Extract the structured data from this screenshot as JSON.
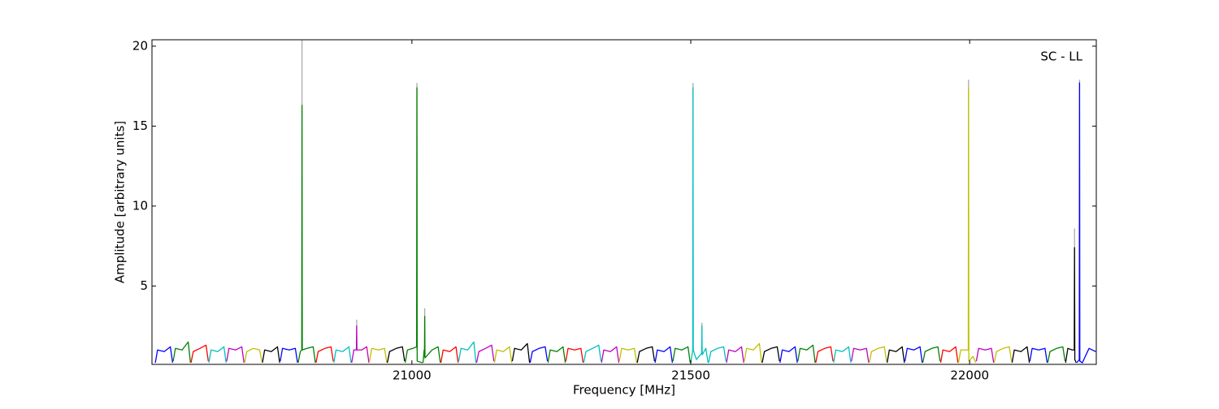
{
  "chart_data": {
    "type": "line",
    "annotation": "SC - LL",
    "x_label": "Frequency [MHz]",
    "y_label": "Amplitude [arbitrary units]",
    "xlim": [
      20534,
      22227
    ],
    "ylim": [
      0.1,
      20.4
    ],
    "xticks": [
      21000,
      21500,
      22000
    ],
    "yticks": [
      5,
      10,
      15,
      20
    ],
    "grid": false,
    "series": [
      {
        "color": "#aaaaaa",
        "x": [
          20803,
          20803,
          20803,
          20901,
          20901,
          20901,
          21009,
          21009,
          21009,
          21023,
          21023,
          21023,
          21504,
          21504,
          21504,
          21520,
          21520,
          21520,
          21998,
          21998,
          21998,
          22188,
          22188,
          22188,
          22197,
          22197,
          22197
        ],
        "values": [
          1,
          21,
          null,
          1,
          2.9,
          null,
          1,
          17.7,
          null,
          1,
          3.6,
          null,
          1,
          17.7,
          null,
          1,
          2.7,
          null,
          1,
          17.9,
          null,
          1,
          8.6,
          null,
          1,
          17.9,
          null
        ]
      },
      {
        "color": "#0000ff",
        "x": [
          20540,
          20544,
          20556,
          20567,
          20571
        ],
        "values": [
          0.2,
          1.0,
          0.9,
          1.2,
          0.2
        ]
      },
      {
        "color": "#008000",
        "x": [
          20572,
          20576,
          20588,
          20599,
          20603
        ],
        "values": [
          0.3,
          1.1,
          1.0,
          1.5,
          0.2
        ]
      },
      {
        "color": "#ff0000",
        "x": [
          20604,
          20608,
          20620,
          20631,
          20635
        ],
        "values": [
          0.2,
          0.9,
          1.1,
          1.3,
          0.3
        ]
      },
      {
        "color": "#00bfbf",
        "x": [
          20636,
          20640,
          20652,
          20663,
          20667
        ],
        "values": [
          0.2,
          1.0,
          0.9,
          1.2,
          0.2
        ]
      },
      {
        "color": "#bf00bf",
        "x": [
          20668,
          20672,
          20684,
          20695,
          20699
        ],
        "values": [
          0.3,
          1.1,
          1.0,
          1.2,
          0.2
        ]
      },
      {
        "color": "#bfbf00",
        "x": [
          20700,
          20704,
          20716,
          20727,
          20731
        ],
        "values": [
          0.2,
          0.9,
          1.1,
          1.0,
          0.3
        ]
      },
      {
        "color": "#000000",
        "x": [
          20732,
          20736,
          20748,
          20759,
          20763
        ],
        "values": [
          0.2,
          1.0,
          0.9,
          1.2,
          0.2
        ]
      },
      {
        "color": "#0000ff",
        "x": [
          20764,
          20768,
          20780,
          20791,
          20795
        ],
        "values": [
          0.3,
          1.1,
          1.0,
          1.1,
          0.2
        ]
      },
      {
        "color": "#008000",
        "x": [
          20796,
          20800,
          20802.5,
          20803,
          20803.5,
          20812,
          20823,
          20827
        ],
        "values": [
          0.2,
          0.9,
          1.0,
          16.3,
          1.0,
          1.1,
          1.2,
          0.2
        ]
      },
      {
        "color": "#ff0000",
        "x": [
          20828,
          20832,
          20844,
          20855,
          20859
        ],
        "values": [
          0.2,
          0.9,
          1.1,
          1.2,
          0.3
        ]
      },
      {
        "color": "#00bfbf",
        "x": [
          20860,
          20864,
          20876,
          20887,
          20891
        ],
        "values": [
          0.2,
          1.0,
          0.9,
          1.2,
          0.2
        ]
      },
      {
        "color": "#bf00bf",
        "x": [
          20892,
          20896,
          20900.5,
          20901,
          20901.5,
          20910,
          20919,
          20923
        ],
        "values": [
          0.2,
          1.0,
          1.0,
          2.5,
          1.0,
          1.0,
          1.2,
          0.2
        ]
      },
      {
        "color": "#bfbf00",
        "x": [
          20924,
          20928,
          20940,
          20951,
          20955
        ],
        "values": [
          0.3,
          1.1,
          1.0,
          1.1,
          0.2
        ]
      },
      {
        "color": "#000000",
        "x": [
          20956,
          20960,
          20972,
          20983,
          20987
        ],
        "values": [
          0.2,
          0.9,
          1.1,
          1.2,
          0.3
        ]
      },
      {
        "color": "#008000",
        "x": [
          20988,
          20992,
          21002,
          21008.5,
          21009,
          21009.5,
          21019
        ],
        "values": [
          0.2,
          1.0,
          1.1,
          1.2,
          17.4,
          0.3,
          0.2
        ]
      },
      {
        "color": "#008000",
        "x": [
          21020,
          21022,
          21022.5,
          21023,
          21023.5,
          21036,
          21047,
          21051
        ],
        "values": [
          0.2,
          1.0,
          0.6,
          3.1,
          0.5,
          1.0,
          1.2,
          0.2
        ]
      },
      {
        "color": "#ff0000",
        "x": [
          21052,
          21056,
          21068,
          21079,
          21083
        ],
        "values": [
          0.2,
          1.0,
          0.9,
          1.2,
          0.2
        ]
      },
      {
        "color": "#00bfbf",
        "x": [
          21084,
          21088,
          21100,
          21111,
          21115
        ],
        "values": [
          0.3,
          1.1,
          1.0,
          1.5,
          0.2
        ]
      },
      {
        "color": "#bf00bf",
        "x": [
          21116,
          21120,
          21132,
          21143,
          21147
        ],
        "values": [
          0.2,
          0.9,
          1.1,
          1.3,
          0.3
        ]
      },
      {
        "color": "#bfbf00",
        "x": [
          21148,
          21152,
          21164,
          21175,
          21179
        ],
        "values": [
          0.2,
          1.0,
          0.9,
          1.2,
          0.2
        ]
      },
      {
        "color": "#000000",
        "x": [
          21180,
          21184,
          21196,
          21207,
          21211
        ],
        "values": [
          0.3,
          1.1,
          1.0,
          1.4,
          0.2
        ]
      },
      {
        "color": "#0000ff",
        "x": [
          21212,
          21216,
          21228,
          21239,
          21243
        ],
        "values": [
          0.2,
          0.9,
          1.1,
          1.2,
          0.3
        ]
      },
      {
        "color": "#008000",
        "x": [
          21244,
          21248,
          21260,
          21271,
          21275
        ],
        "values": [
          0.2,
          1.0,
          0.9,
          1.2,
          0.2
        ]
      },
      {
        "color": "#ff0000",
        "x": [
          21276,
          21280,
          21292,
          21303,
          21307
        ],
        "values": [
          0.3,
          1.1,
          1.0,
          1.1,
          0.2
        ]
      },
      {
        "color": "#00bfbf",
        "x": [
          21308,
          21312,
          21324,
          21335,
          21339
        ],
        "values": [
          0.2,
          0.9,
          1.1,
          1.3,
          0.3
        ]
      },
      {
        "color": "#bf00bf",
        "x": [
          21340,
          21344,
          21356,
          21367,
          21371
        ],
        "values": [
          0.2,
          1.0,
          0.9,
          1.2,
          0.2
        ]
      },
      {
        "color": "#bfbf00",
        "x": [
          21372,
          21376,
          21388,
          21399,
          21403
        ],
        "values": [
          0.3,
          1.1,
          1.0,
          1.1,
          0.2
        ]
      },
      {
        "color": "#000000",
        "x": [
          21404,
          21408,
          21420,
          21431,
          21435
        ],
        "values": [
          0.2,
          0.9,
          1.1,
          1.2,
          0.3
        ]
      },
      {
        "color": "#0000ff",
        "x": [
          21436,
          21440,
          21452,
          21463,
          21467
        ],
        "values": [
          0.2,
          1.0,
          0.9,
          1.2,
          0.2
        ]
      },
      {
        "color": "#008000",
        "x": [
          21468,
          21472,
          21484,
          21495,
          21499
        ],
        "values": [
          0.3,
          1.1,
          1.0,
          1.2,
          0.2
        ]
      },
      {
        "color": "#00bfbf",
        "x": [
          21500,
          21503.5,
          21504,
          21504.5,
          21510,
          21519.5,
          21520,
          21520.5,
          21527,
          21531
        ],
        "values": [
          0.2,
          1.0,
          17.4,
          1.0,
          0.4,
          0.8,
          2.5,
          0.7,
          1.1,
          0.2
        ]
      },
      {
        "color": "#00bfbf",
        "x": [
          21532,
          21536,
          21548,
          21559,
          21563
        ],
        "values": [
          0.2,
          0.9,
          1.1,
          1.2,
          0.3
        ]
      },
      {
        "color": "#bf00bf",
        "x": [
          21564,
          21568,
          21580,
          21591,
          21595
        ],
        "values": [
          0.2,
          1.0,
          0.9,
          1.2,
          0.2
        ]
      },
      {
        "color": "#bfbf00",
        "x": [
          21596,
          21600,
          21612,
          21623,
          21627
        ],
        "values": [
          0.3,
          1.1,
          1.0,
          1.4,
          0.2
        ]
      },
      {
        "color": "#000000",
        "x": [
          21628,
          21632,
          21644,
          21655,
          21659
        ],
        "values": [
          0.2,
          0.9,
          1.1,
          1.2,
          0.3
        ]
      },
      {
        "color": "#0000ff",
        "x": [
          21660,
          21664,
          21676,
          21687,
          21691
        ],
        "values": [
          0.2,
          1.0,
          0.9,
          1.2,
          0.2
        ]
      },
      {
        "color": "#008000",
        "x": [
          21692,
          21696,
          21708,
          21719,
          21723
        ],
        "values": [
          0.3,
          1.1,
          1.0,
          1.3,
          0.2
        ]
      },
      {
        "color": "#ff0000",
        "x": [
          21724,
          21728,
          21740,
          21751,
          21755
        ],
        "values": [
          0.2,
          0.9,
          1.1,
          1.2,
          0.3
        ]
      },
      {
        "color": "#00bfbf",
        "x": [
          21756,
          21760,
          21772,
          21783,
          21787
        ],
        "values": [
          0.2,
          1.0,
          0.9,
          1.2,
          0.2
        ]
      },
      {
        "color": "#bf00bf",
        "x": [
          21788,
          21792,
          21804,
          21815,
          21819
        ],
        "values": [
          0.3,
          1.1,
          1.0,
          1.1,
          0.2
        ]
      },
      {
        "color": "#bfbf00",
        "x": [
          21820,
          21824,
          21836,
          21847,
          21851
        ],
        "values": [
          0.2,
          0.9,
          1.1,
          1.2,
          0.3
        ]
      },
      {
        "color": "#000000",
        "x": [
          21852,
          21856,
          21868,
          21879,
          21883
        ],
        "values": [
          0.2,
          1.0,
          0.9,
          1.2,
          0.2
        ]
      },
      {
        "color": "#0000ff",
        "x": [
          21884,
          21888,
          21900,
          21911,
          21915
        ],
        "values": [
          0.3,
          1.1,
          1.0,
          1.2,
          0.2
        ]
      },
      {
        "color": "#008000",
        "x": [
          21916,
          21920,
          21932,
          21943,
          21947
        ],
        "values": [
          0.2,
          0.9,
          1.1,
          1.2,
          0.3
        ]
      },
      {
        "color": "#ff0000",
        "x": [
          21948,
          21952,
          21964,
          21975,
          21979
        ],
        "values": [
          0.2,
          1.0,
          0.9,
          1.2,
          0.2
        ]
      },
      {
        "color": "#bfbf00",
        "x": [
          21980,
          21984,
          21993,
          21997.5,
          21998,
          21998.5,
          22006,
          22011
        ],
        "values": [
          0.2,
          1.0,
          1.0,
          1.0,
          17.4,
          0.3,
          0.6,
          0.2
        ]
      },
      {
        "color": "#bf00bf",
        "x": [
          22012,
          22016,
          22028,
          22039,
          22043
        ],
        "values": [
          0.3,
          1.1,
          1.0,
          1.1,
          0.2
        ]
      },
      {
        "color": "#bfbf00",
        "x": [
          22044,
          22048,
          22060,
          22071,
          22075
        ],
        "values": [
          0.2,
          0.9,
          1.1,
          1.2,
          0.3
        ]
      },
      {
        "color": "#000000",
        "x": [
          22076,
          22080,
          22092,
          22103,
          22107
        ],
        "values": [
          0.2,
          1.0,
          0.9,
          1.2,
          0.2
        ]
      },
      {
        "color": "#0000ff",
        "x": [
          22108,
          22112,
          22124,
          22135,
          22139
        ],
        "values": [
          0.3,
          1.1,
          1.0,
          1.1,
          0.2
        ]
      },
      {
        "color": "#008000",
        "x": [
          22140,
          22144,
          22156,
          22167,
          22171
        ],
        "values": [
          0.2,
          0.9,
          1.1,
          1.2,
          0.3
        ]
      },
      {
        "color": "#000000",
        "x": [
          22172,
          22176,
          22184,
          22187.5,
          22188,
          22188.5,
          22191
        ],
        "values": [
          0.2,
          1.1,
          1.0,
          1.0,
          7.4,
          0.4,
          0.2
        ]
      },
      {
        "color": "#0000ff",
        "x": [
          22192,
          22196.5,
          22197,
          22197.5,
          22202,
          22214,
          22226
        ],
        "values": [
          0.2,
          0.4,
          17.7,
          0.3,
          0.2,
          1.1,
          0.9
        ]
      }
    ]
  }
}
